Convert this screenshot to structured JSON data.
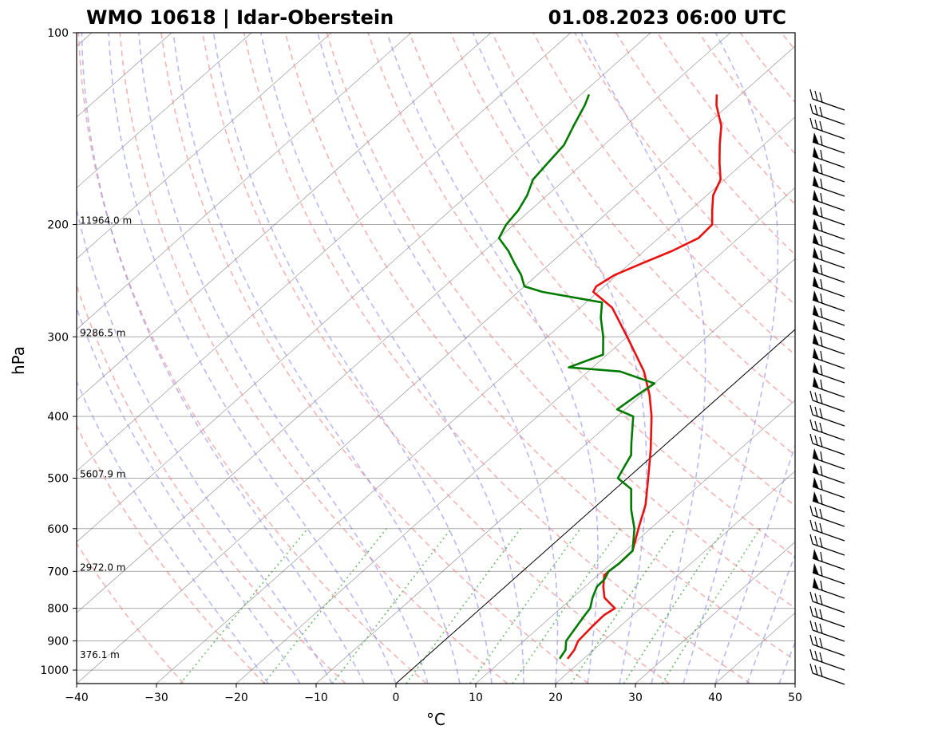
{
  "header": {
    "station": "WMO 10618 | Idar-Oberstein",
    "datetime": "01.08.2023 06:00 UTC"
  },
  "axes": {
    "xlabel": "°C",
    "ylabel": "hPa",
    "xticks": [
      "−40",
      "−30",
      "−20",
      "−10",
      "0",
      "10",
      "20",
      "30",
      "40",
      "50"
    ],
    "yticks": [
      "100",
      "200",
      "300",
      "400",
      "500",
      "600",
      "700",
      "800",
      "900",
      "1000"
    ]
  },
  "height_labels": [
    {
      "p": 200,
      "text": "11964.0 m"
    },
    {
      "p": 300,
      "text": "9286.5 m"
    },
    {
      "p": 500,
      "text": "5607.9 m"
    },
    {
      "p": 700,
      "text": "2972.0 m"
    },
    {
      "p": 960,
      "text": "376.1 m"
    }
  ],
  "colors": {
    "temperature": "#e8110f",
    "dewpoint": "#007a00",
    "dry_adiabat": "#f08080",
    "moist_adiabat": "#8080ee",
    "mixing_ratio": "#2ca02c",
    "isotherm": "#555555",
    "grid": "#aaaaaa"
  },
  "chart_data": {
    "type": "skew-t",
    "title": "WMO 10618 | Idar-Oberstein",
    "subtitle": "01.08.2023 06:00 UTC",
    "xlabel": "°C",
    "ylabel": "hPa",
    "xlim": [
      -40,
      50
    ],
    "ylim": [
      1050,
      100
    ],
    "skew_deg_c_per_decade": 90,
    "temperature": [
      {
        "p": 960,
        "t": 18.0
      },
      {
        "p": 930,
        "t": 17.6
      },
      {
        "p": 900,
        "t": 16.8
      },
      {
        "p": 850,
        "t": 16.5
      },
      {
        "p": 820,
        "t": 16.4
      },
      {
        "p": 800,
        "t": 16.8
      },
      {
        "p": 770,
        "t": 14.0
      },
      {
        "p": 740,
        "t": 12.3
      },
      {
        "p": 710,
        "t": 10.8
      },
      {
        "p": 700,
        "t": 10.8
      },
      {
        "p": 680,
        "t": 11.0
      },
      {
        "p": 650,
        "t": 10.9
      },
      {
        "p": 600,
        "t": 8.5
      },
      {
        "p": 550,
        "t": 6.0
      },
      {
        "p": 500,
        "t": 2.6
      },
      {
        "p": 450,
        "t": -1.2
      },
      {
        "p": 400,
        "t": -5.7
      },
      {
        "p": 370,
        "t": -9.0
      },
      {
        "p": 340,
        "t": -13.0
      },
      {
        "p": 300,
        "t": -20.0
      },
      {
        "p": 270,
        "t": -26.0
      },
      {
        "p": 255,
        "t": -30.6
      },
      {
        "p": 250,
        "t": -31.0
      },
      {
        "p": 240,
        "t": -30.3
      },
      {
        "p": 230,
        "t": -28.5
      },
      {
        "p": 220,
        "t": -26.5
      },
      {
        "p": 210,
        "t": -25.0
      },
      {
        "p": 200,
        "t": -25.2
      },
      {
        "p": 190,
        "t": -27.2
      },
      {
        "p": 180,
        "t": -29.2
      },
      {
        "p": 170,
        "t": -30.5
      },
      {
        "p": 160,
        "t": -33.0
      },
      {
        "p": 150,
        "t": -35.5
      },
      {
        "p": 140,
        "t": -38.0
      },
      {
        "p": 130,
        "t": -41.5
      },
      {
        "p": 125,
        "t": -43.0
      }
    ],
    "dewpoint": [
      {
        "p": 960,
        "t": 17.0
      },
      {
        "p": 930,
        "t": 16.5
      },
      {
        "p": 900,
        "t": 15.3
      },
      {
        "p": 850,
        "t": 14.5
      },
      {
        "p": 820,
        "t": 14.0
      },
      {
        "p": 800,
        "t": 13.7
      },
      {
        "p": 770,
        "t": 12.5
      },
      {
        "p": 740,
        "t": 11.5
      },
      {
        "p": 720,
        "t": 11.4
      },
      {
        "p": 700,
        "t": 10.8
      },
      {
        "p": 680,
        "t": 11.0
      },
      {
        "p": 650,
        "t": 10.9
      },
      {
        "p": 600,
        "t": 8.0
      },
      {
        "p": 560,
        "t": 4.9
      },
      {
        "p": 520,
        "t": 2.0
      },
      {
        "p": 500,
        "t": -1.2
      },
      {
        "p": 480,
        "t": -2.0
      },
      {
        "p": 460,
        "t": -2.8
      },
      {
        "p": 440,
        "t": -4.5
      },
      {
        "p": 400,
        "t": -8.0
      },
      {
        "p": 390,
        "t": -11.0
      },
      {
        "p": 370,
        "t": -10.5
      },
      {
        "p": 355,
        "t": -10.0
      },
      {
        "p": 340,
        "t": -16.0
      },
      {
        "p": 335,
        "t": -23.0
      },
      {
        "p": 320,
        "t": -20.5
      },
      {
        "p": 300,
        "t": -23.0
      },
      {
        "p": 280,
        "t": -26.0
      },
      {
        "p": 265,
        "t": -28.0
      },
      {
        "p": 255,
        "t": -37.0
      },
      {
        "p": 250,
        "t": -40.0
      },
      {
        "p": 240,
        "t": -42.0
      },
      {
        "p": 230,
        "t": -44.5
      },
      {
        "p": 220,
        "t": -47.0
      },
      {
        "p": 210,
        "t": -50.0
      },
      {
        "p": 200,
        "t": -51.0
      },
      {
        "p": 190,
        "t": -51.5
      },
      {
        "p": 180,
        "t": -52.5
      },
      {
        "p": 170,
        "t": -54.0
      },
      {
        "p": 160,
        "t": -54.5
      },
      {
        "p": 150,
        "t": -55.0
      },
      {
        "p": 140,
        "t": -56.5
      },
      {
        "p": 130,
        "t": -58.0
      },
      {
        "p": 125,
        "t": -59.0
      }
    ]
  }
}
